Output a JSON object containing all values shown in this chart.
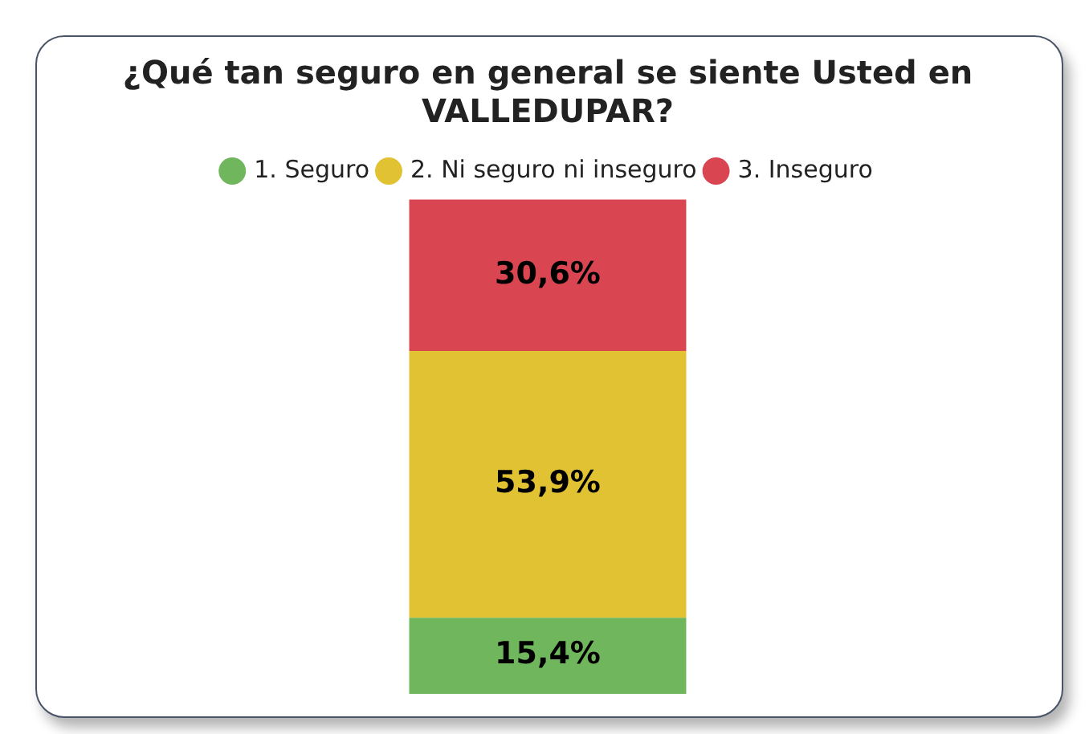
{
  "chart_data": {
    "type": "bar",
    "title": "¿Qué tan seguro en general se siente Usted en VALLEDUPAR?",
    "categories": [
      null
    ],
    "stacked": true,
    "legend": "top",
    "series": [
      {
        "name": "1. Seguro",
        "color": "#70b65c",
        "values": [
          15.4
        ],
        "value_labels": [
          "15,4%"
        ]
      },
      {
        "name": "2. Ni seguro ni inseguro",
        "color": "#e1c233",
        "values": [
          53.9
        ],
        "value_labels": [
          "53,9%"
        ]
      },
      {
        "name": "3. Inseguro",
        "color": "#d94550",
        "values": [
          30.6
        ],
        "value_labels": [
          "30,6%"
        ]
      }
    ]
  }
}
